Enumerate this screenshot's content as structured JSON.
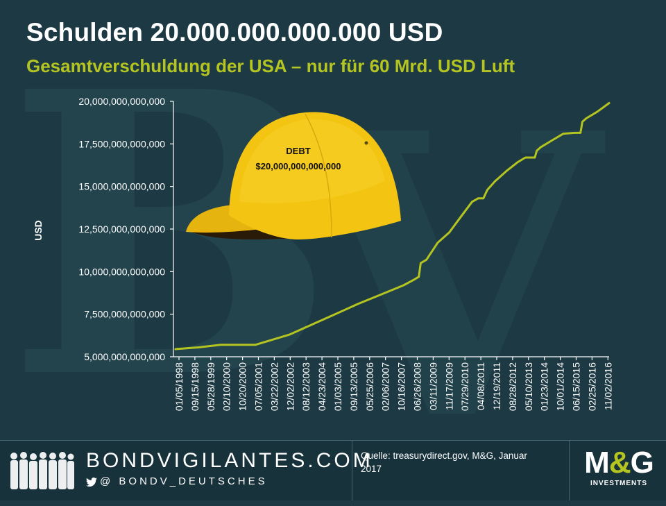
{
  "header": {
    "title": "Schulden 20.000.000.000.000 USD",
    "subtitle": "Gesamtverschuldung der USA – nur für 60 Mrd. USD Luft"
  },
  "colors": {
    "background": "#1d3a44",
    "accent": "#b4c420",
    "line": "#b4c420",
    "cap": "#f3c512",
    "text": "#ffffff"
  },
  "chart_data": {
    "type": "line",
    "ylabel": "USD",
    "xlabel": "",
    "ylim": [
      5000000000000,
      20000000000000
    ],
    "yticks": [
      "20,000,000,000,000",
      "17,500,000,000,000",
      "15,000,000,000,000",
      "12,500,000,000,000",
      "10,000,000,000,000",
      "7,500,000,000,000",
      "5,000,000,000,000"
    ],
    "ytick_values": [
      20000000000000,
      17500000000000,
      15000000000000,
      12500000000000,
      10000000000000,
      7500000000000,
      5000000000000
    ],
    "xticks": [
      "01/05/1998",
      "09/15/1998",
      "05/28/1999",
      "02/10/2000",
      "10/20/2000",
      "07/05/2001",
      "03/22/2002",
      "12/02/2002",
      "08/12/2003",
      "04/23/2004",
      "01/03/2005",
      "09/13/2005",
      "05/25/2006",
      "02/06/2007",
      "10/16/2007",
      "06/26/2008",
      "03/11/2009",
      "11/17/2009",
      "07/29/2010",
      "04/08/2011",
      "12/19/2011",
      "08/28/2012",
      "05/10/2013",
      "01/23/2014",
      "10/01/2014",
      "06/15/2015",
      "02/25/2016",
      "11/02/2016"
    ],
    "grid": false,
    "legend": "none",
    "series": [
      {
        "x": [
          "01/05/1998",
          "01/1999",
          "01/2000",
          "01/2001",
          "07/05/2001",
          "01/2002",
          "01/2003",
          "01/2004",
          "01/2005",
          "01/2006",
          "01/2007",
          "01/2008",
          "06/26/2008",
          "09/2008",
          "10/2008",
          "01/2009",
          "07/2009",
          "01/2010",
          "07/2010",
          "01/2011",
          "04/08/2011",
          "07/2011",
          "09/2011",
          "01/2012",
          "07/2012",
          "01/2013",
          "05/2013",
          "10/2013",
          "11/2013",
          "01/2014",
          "07/2014",
          "01/2015",
          "07/2015",
          "10/2015",
          "11/2015",
          "01/2016",
          "07/2016",
          "01/2017"
        ],
        "values": [
          5450000000000,
          5550000000000,
          5700000000000,
          5700000000000,
          5700000000000,
          5900000000000,
          6300000000000,
          6900000000000,
          7500000000000,
          8100000000000,
          8650000000000,
          9200000000000,
          9550000000000,
          9700000000000,
          10500000000000,
          10700000000000,
          11700000000000,
          12300000000000,
          13200000000000,
          14100000000000,
          14300000000000,
          14300000000000,
          14800000000000,
          15300000000000,
          15900000000000,
          16430000000000,
          16700000000000,
          16700000000000,
          17100000000000,
          17300000000000,
          17700000000000,
          18100000000000,
          18150000000000,
          18150000000000,
          18800000000000,
          19000000000000,
          19400000000000,
          19900000000000
        ]
      }
    ],
    "annotation": {
      "cap_label": "DEBT",
      "cap_amount": "$20,000,000,000,000"
    }
  },
  "footer": {
    "brand": "BONDVIGILANTES.COM",
    "handle": "@ BONDV_DEUTSCHES",
    "source": "Quelle: treasurydirect.gov, M&G, Januar 2017",
    "logo_main_1": "M",
    "logo_amp": "&",
    "logo_main_2": "G",
    "logo_sub": "INVESTMENTS"
  }
}
